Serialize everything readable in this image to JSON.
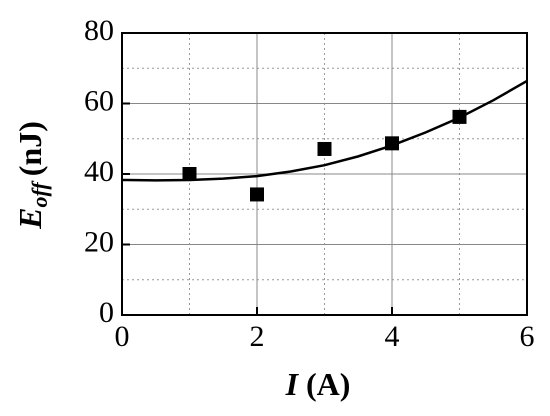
{
  "chart_data": {
    "type": "scatter",
    "xlabel": {
      "symbol": "I",
      "unit": "(A)"
    },
    "ylabel": {
      "symbol": "E",
      "subscript": "off",
      "unit": "(nJ)"
    },
    "xlim": [
      0,
      6
    ],
    "ylim": [
      0,
      80
    ],
    "xticks": [
      0,
      2,
      4,
      6
    ],
    "yticks": [
      0,
      20,
      40,
      60,
      80
    ],
    "xminor": [
      1,
      3,
      5
    ],
    "yminor": [
      10,
      30,
      50,
      70
    ],
    "grid": true,
    "points": {
      "x": [
        1,
        2,
        3,
        4,
        5
      ],
      "y": [
        40,
        34.2,
        47.1,
        48.7,
        56.2
      ],
      "color": "#000000"
    },
    "fit": {
      "x": [
        0,
        0.5,
        1,
        1.5,
        2,
        2.5,
        3,
        3.5,
        4,
        4.5,
        5,
        5.5,
        6
      ],
      "y": [
        38.3,
        38.2,
        38.3,
        38.7,
        39.4,
        40.7,
        42.5,
        45,
        48.1,
        51.8,
        56,
        60.9,
        66.4
      ],
      "color": "#000000"
    }
  }
}
